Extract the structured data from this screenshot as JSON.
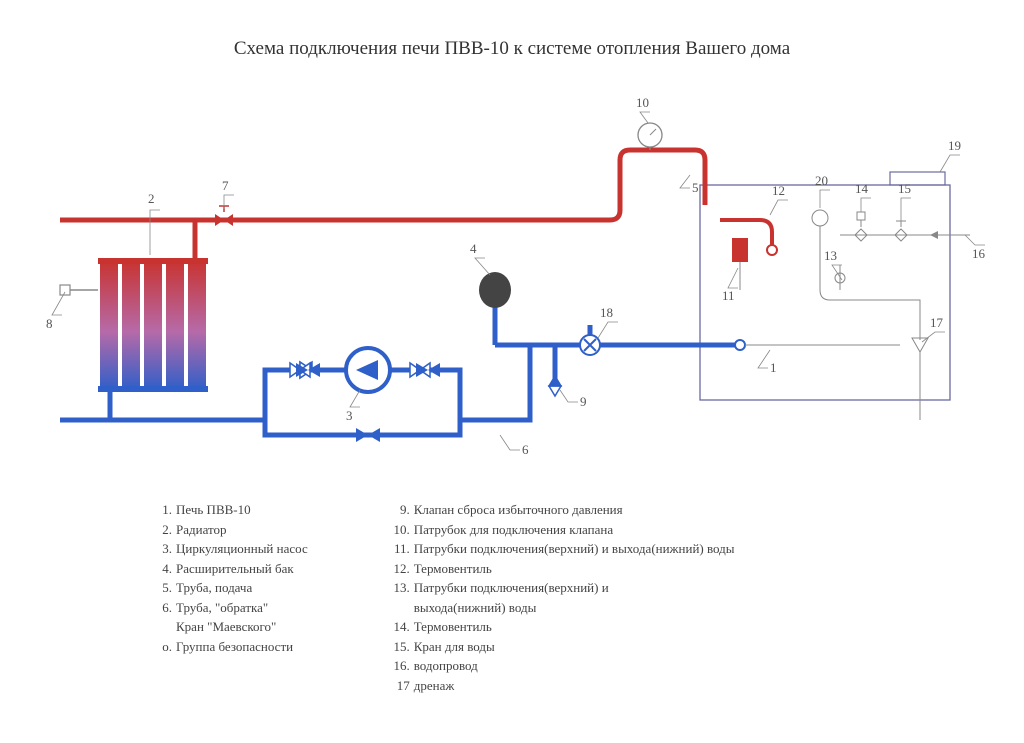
{
  "title": "Схема подключения печи ПВВ-10 к системе отопления Вашего дома",
  "colors": {
    "hot": "#c8332f",
    "cold": "#2f5fc8",
    "radiator_mid": "#b66aa8",
    "line": "#888888",
    "tank_fill": "#444444",
    "furnace_stroke": "#6a6aa0"
  },
  "pipe_width": 5,
  "thin_line_width": 0.9,
  "callouts": {
    "c1": {
      "n": "1"
    },
    "c2": {
      "n": "2"
    },
    "c3": {
      "n": "3"
    },
    "c4": {
      "n": "4"
    },
    "c5": {
      "n": "5"
    },
    "c6": {
      "n": "6"
    },
    "c7": {
      "n": "7"
    },
    "c8": {
      "n": "8"
    },
    "c9": {
      "n": "9"
    },
    "c10": {
      "n": "10"
    },
    "c11": {
      "n": "11"
    },
    "c12": {
      "n": "12"
    },
    "c13": {
      "n": "13"
    },
    "c14": {
      "n": "14"
    },
    "c15": {
      "n": "15"
    },
    "c16": {
      "n": "16"
    },
    "c17": {
      "n": "17"
    },
    "c18": {
      "n": "18"
    },
    "c19": {
      "n": "19"
    },
    "c20": {
      "n": "20"
    }
  },
  "legend_left": [
    {
      "n": "1.",
      "t": "Печь ПВВ-10"
    },
    {
      "n": "2.",
      "t": "Радиатор"
    },
    {
      "n": "3.",
      "t": "Циркуляционный насос"
    },
    {
      "n": "4.",
      "t": "Расширительный бак"
    },
    {
      "n": "5.",
      "t": "Труба, подача"
    },
    {
      "n": "6.",
      "t": "Труба, \"обратка\""
    },
    {
      "n": "",
      "t": "Кран \"Маевского\""
    },
    {
      "n": "о.",
      "t": "Группа безопасности"
    }
  ],
  "legend_right": [
    {
      "n": "9.",
      "t": "Клапан сброса избыточного давления"
    },
    {
      "n": "10.",
      "t": "Патрубок для подключения клапана"
    },
    {
      "n": "11.",
      "t": "Патрубки подключения(верхний) и выхода(нижний) воды"
    },
    {
      "n": "12.",
      "t": "Термовентиль"
    },
    {
      "n": "13.",
      "t": "Патрубки подключения(верхний) и"
    },
    {
      "n": "",
      "t": "выхода(нижний) воды"
    },
    {
      "n": "14.",
      "t": "Термовентиль"
    },
    {
      "n": "15.",
      "t": "Кран для воды"
    },
    {
      "n": "16.",
      "t": "водопровод"
    },
    {
      "n": "17",
      "t": "дренаж"
    }
  ]
}
